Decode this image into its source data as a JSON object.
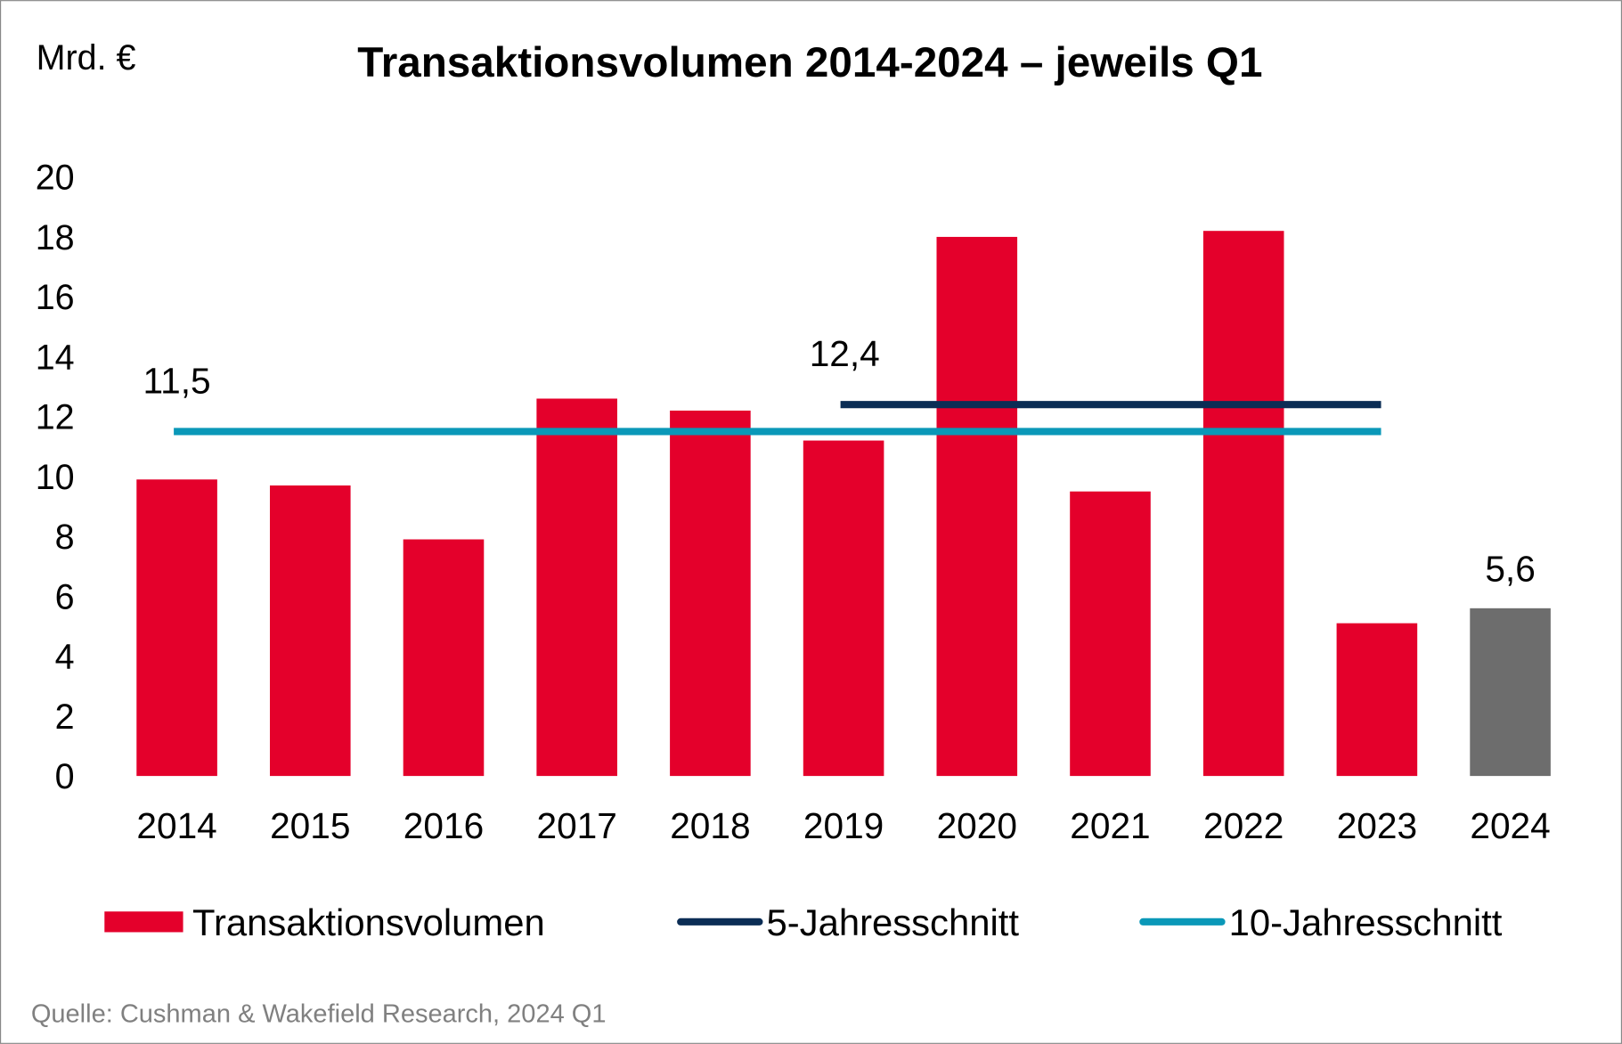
{
  "chart_data": {
    "type": "bar",
    "title": "Transaktionsvolumen 2014-2024 – jeweils Q1",
    "ylabel": "Mrd. €",
    "xlabel": "",
    "ylim": [
      0,
      20
    ],
    "yticks": [
      "0",
      "2",
      "4",
      "6",
      "8",
      "10",
      "12",
      "14",
      "16",
      "18",
      "20"
    ],
    "grid": false,
    "legend_position": "bottom",
    "categories": [
      "2014",
      "2015",
      "2016",
      "2017",
      "2018",
      "2019",
      "2020",
      "2021",
      "2022",
      "2023",
      "2024"
    ],
    "series": [
      {
        "name": "Transaktionsvolumen",
        "type": "bar",
        "color": "#E4002B",
        "highlight_color": "#6D6D6D",
        "highlight_category": "2024",
        "values": [
          9.9,
          9.7,
          7.9,
          12.6,
          12.2,
          11.2,
          18.0,
          9.5,
          18.2,
          5.1,
          5.6
        ]
      },
      {
        "name": "5-Jahresschnitt",
        "type": "line",
        "color": "#0B2D55",
        "value": 12.4,
        "from": "2019",
        "to": "2023"
      },
      {
        "name": "10-Jahresschnitt",
        "type": "line",
        "color": "#0A98B8",
        "value": 11.5,
        "from": "2014",
        "to": "2023"
      }
    ],
    "annotations": [
      {
        "text": "11,5",
        "category": "2014",
        "value": 11.5
      },
      {
        "text": "12,4",
        "category": "2019",
        "value": 12.4
      },
      {
        "text": "5,6",
        "category": "2024",
        "value": 5.6
      }
    ],
    "source": "Quelle: Cushman & Wakefield Research, 2024 Q1"
  }
}
